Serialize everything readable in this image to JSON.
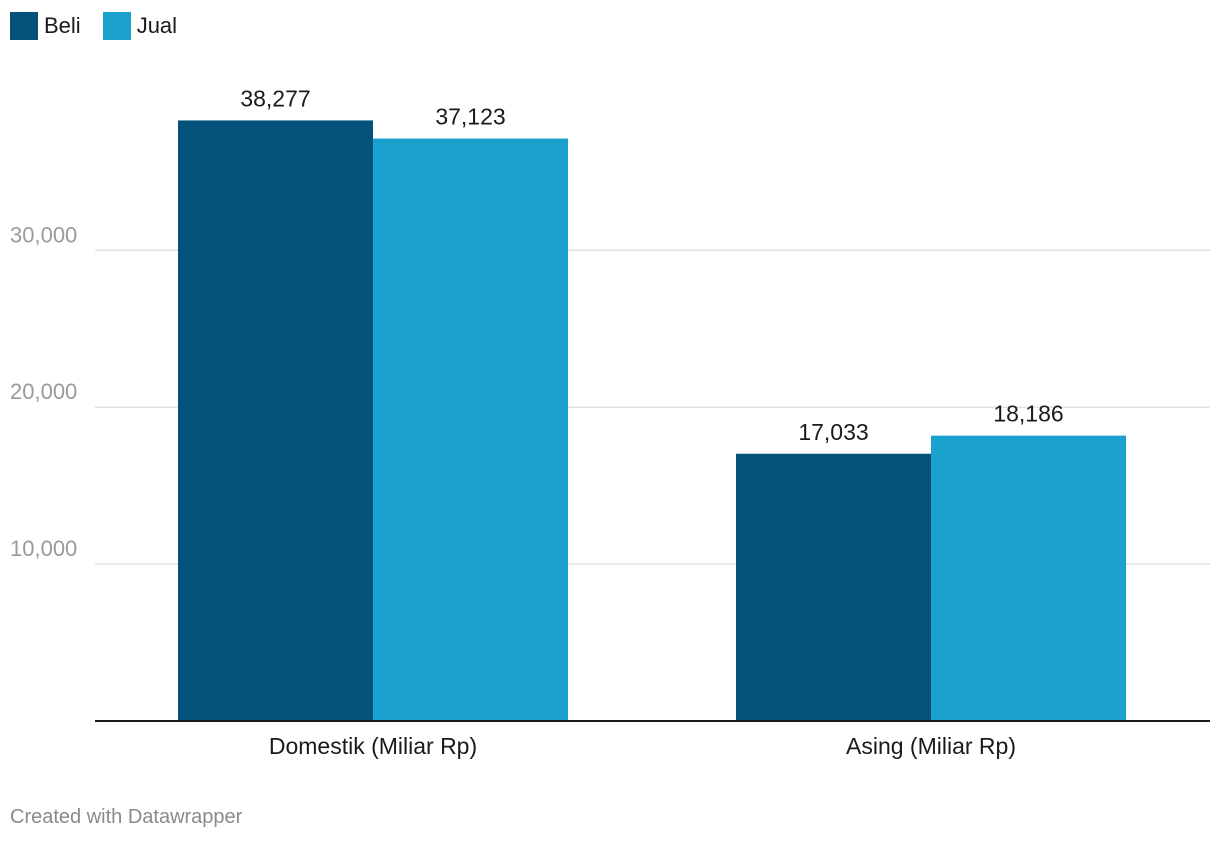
{
  "colors": {
    "beli": "#02527a",
    "jual": "#1aa1cd",
    "grid": "#e3e3e3",
    "axis": "#1a1a1a"
  },
  "legend": {
    "items": [
      {
        "label": "Beli",
        "color": "#02527a"
      },
      {
        "label": "Jual",
        "color": "#1aa1cd"
      }
    ]
  },
  "chart_data": {
    "type": "bar",
    "title": "",
    "xlabel": "",
    "ylabel": "",
    "categories": [
      "Domestik (Miliar Rp)",
      "Asing (Miliar Rp)"
    ],
    "series": [
      {
        "name": "Beli",
        "values": [
          38277,
          17033
        ],
        "labels": [
          "38,277",
          "17,033"
        ]
      },
      {
        "name": "Jual",
        "values": [
          37123,
          18186
        ],
        "labels": [
          "37,123",
          "18,186"
        ]
      }
    ],
    "yticks": [
      10000,
      20000,
      30000
    ],
    "ytick_labels": [
      "10,000",
      "20,000",
      "30,000"
    ],
    "ylim": [
      0,
      40000
    ],
    "grid": true,
    "legend_position": "top-left"
  },
  "footer": {
    "credit": "Created with Datawrapper"
  }
}
